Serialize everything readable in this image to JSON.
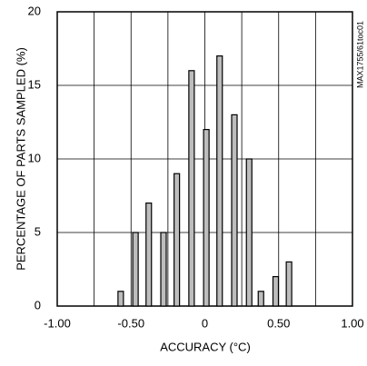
{
  "chart_data": {
    "type": "bar",
    "note_id": "MAX1755/61toc01",
    "xlabel": "ACCURACY (°C)",
    "ylabel": "PERCENTAGE OF PARTS SAMPLED (%)",
    "x": [
      -0.57,
      -0.47,
      -0.38,
      -0.28,
      -0.19,
      -0.09,
      0.01,
      0.1,
      0.2,
      0.3,
      0.38,
      0.48,
      0.57
    ],
    "values": [
      1,
      5,
      7,
      5,
      9,
      16,
      12,
      17,
      13,
      10,
      1,
      2,
      3
    ],
    "color": "#bdbdbd",
    "xlim": [
      -1,
      1
    ],
    "xticks": [
      {
        "value": -1,
        "label": "-1.00"
      },
      {
        "value": -0.5,
        "label": "-0.50"
      },
      {
        "value": 0,
        "label": "0"
      },
      {
        "value": 0.5,
        "label": "0.50"
      },
      {
        "value": 1,
        "label": "1.00"
      }
    ],
    "xminor": [
      -0.75,
      -0.25,
      0.25,
      0.75
    ],
    "ylim": [
      0,
      20
    ],
    "yticks": [
      0,
      5,
      10,
      15,
      20
    ],
    "grid": true
  }
}
